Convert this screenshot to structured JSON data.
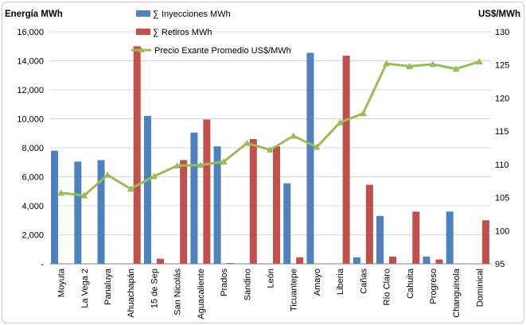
{
  "chart_data": {
    "type": "bar",
    "y_left_label": "Energía MWh",
    "y_right_label": "US$/MWh",
    "ylim_left": [
      0,
      16000
    ],
    "ylim_right": [
      95,
      130
    ],
    "y_left_ticks": [
      "-",
      "2,000",
      "4,000",
      "6,000",
      "8,000",
      "10,000",
      "12,000",
      "14,000",
      "16,000"
    ],
    "y_left_tick_values": [
      0,
      2000,
      4000,
      6000,
      8000,
      10000,
      12000,
      14000,
      16000
    ],
    "y_right_ticks": [
      "95",
      "100",
      "105",
      "110",
      "115",
      "120",
      "125",
      "130"
    ],
    "y_right_tick_values": [
      95,
      100,
      105,
      110,
      115,
      120,
      125,
      130
    ],
    "categories": [
      "Moyuta",
      "La Vega 2",
      "Panaluya",
      "Ahuachapán",
      "15 de Sep",
      "San Nicolás",
      "Aguacaliente",
      "Prados",
      "Sandino",
      "León",
      "Ticuantepe",
      "Amayo",
      "Liberia",
      "Cañas",
      "Río Claro",
      "Cahuita",
      "Progreso",
      "Changuinola",
      "Dominical"
    ],
    "series": [
      {
        "name": "∑ Inyecciones MWh",
        "kind": "bar",
        "axis": "left",
        "color": "#4f81bd",
        "values": [
          7800,
          7050,
          7150,
          0,
          10200,
          0,
          9050,
          8100,
          0,
          30,
          5550,
          14550,
          0,
          450,
          3300,
          0,
          500,
          3600,
          0
        ]
      },
      {
        "name": "∑ Retiros MWh",
        "kind": "bar",
        "axis": "left",
        "color": "#c0504d",
        "values": [
          0,
          0,
          0,
          15000,
          350,
          7150,
          9950,
          50,
          8600,
          8100,
          450,
          0,
          14350,
          5450,
          500,
          3600,
          300,
          0,
          3000
        ]
      },
      {
        "name": "Precio Exante Promedio US$/MWh",
        "kind": "line",
        "axis": "right",
        "color": "#9bbb59",
        "values": [
          105.7,
          105.3,
          108.4,
          106.3,
          108.2,
          109.8,
          109.9,
          110.4,
          113.2,
          112.2,
          114.3,
          112.6,
          116.3,
          117.7,
          125.2,
          124.8,
          125.1,
          124.4,
          125.5
        ]
      }
    ],
    "grid": true,
    "legend_position": "top-center"
  }
}
